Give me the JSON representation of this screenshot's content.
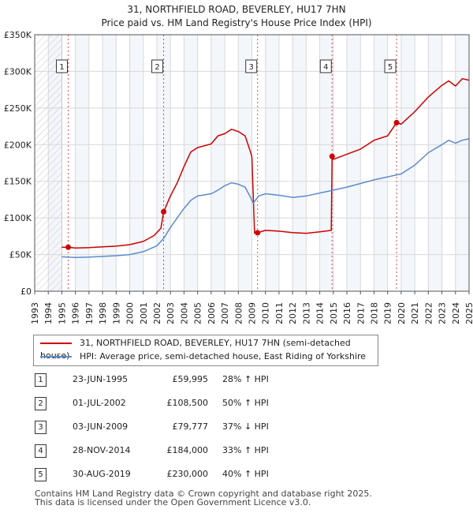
{
  "title": {
    "line1": "31, NORTHFIELD ROAD, BEVERLEY, HU17 7HN",
    "line2": "Price paid vs. HM Land Registry's House Price Index (HPI)"
  },
  "colors": {
    "property": "#cc0000",
    "hpi": "#5b8ccc",
    "grid": "#d8d8d8",
    "highlight": "#dde6f3"
  },
  "chart_data": {
    "type": "line",
    "title": "31, NORTHFIELD ROAD, BEVERLEY, HU17 7HN — Price paid vs. HM Land Registry's House Price Index (HPI)",
    "xlim": [
      1993,
      2025
    ],
    "ylim": [
      0,
      350000
    ],
    "xticks": [
      "1993",
      "1994",
      "1995",
      "1996",
      "1997",
      "1998",
      "1999",
      "2000",
      "2001",
      "2002",
      "2003",
      "2004",
      "2005",
      "2006",
      "2007",
      "2008",
      "2009",
      "2010",
      "2011",
      "2012",
      "2013",
      "2014",
      "2015",
      "2016",
      "2017",
      "2018",
      "2019",
      "2020",
      "2021",
      "2022",
      "2023",
      "2024",
      "2025"
    ],
    "yticks": [
      {
        "value": 0,
        "label": "£0"
      },
      {
        "value": 50000,
        "label": "£50K"
      },
      {
        "value": 100000,
        "label": "£100K"
      },
      {
        "value": 150000,
        "label": "£150K"
      },
      {
        "value": 200000,
        "label": "£200K"
      },
      {
        "value": 250000,
        "label": "£250K"
      },
      {
        "value": 300000,
        "label": "£300K"
      },
      {
        "value": 350000,
        "label": "£350K"
      }
    ],
    "hatch_until": 1995.0,
    "series": [
      {
        "name": "31, NORTHFIELD ROAD, BEVERLEY, HU17 7HN (semi-detached house)",
        "points": [
          [
            1995.0,
            60000
          ],
          [
            1995.47,
            59995
          ],
          [
            1996,
            59000
          ],
          [
            1997,
            59500
          ],
          [
            1998,
            60500
          ],
          [
            1999,
            61500
          ],
          [
            2000,
            63500
          ],
          [
            2001,
            68000
          ],
          [
            2001.8,
            76000
          ],
          [
            2002.3,
            86000
          ],
          [
            2002.5,
            108500
          ],
          [
            2003,
            130000
          ],
          [
            2003.5,
            148000
          ],
          [
            2004,
            170000
          ],
          [
            2004.5,
            190000
          ],
          [
            2005,
            196000
          ],
          [
            2006,
            201000
          ],
          [
            2006.5,
            212000
          ],
          [
            2007,
            215000
          ],
          [
            2007.5,
            221000
          ],
          [
            2008,
            218000
          ],
          [
            2008.5,
            212000
          ],
          [
            2008.9,
            190000
          ],
          [
            2009.0,
            183000
          ],
          [
            2009.2,
            79000
          ],
          [
            2009.42,
            79777
          ],
          [
            2010,
            83000
          ],
          [
            2011,
            82000
          ],
          [
            2012,
            80000
          ],
          [
            2013,
            79000
          ],
          [
            2014,
            81000
          ],
          [
            2014.85,
            83000
          ],
          [
            2014.91,
            184000
          ],
          [
            2015,
            180000
          ],
          [
            2016,
            187000
          ],
          [
            2017,
            194000
          ],
          [
            2018,
            206000
          ],
          [
            2019,
            212000
          ],
          [
            2019.66,
            230000
          ],
          [
            2020,
            228000
          ],
          [
            2021,
            245000
          ],
          [
            2022,
            265000
          ],
          [
            2023,
            281000
          ],
          [
            2023.5,
            287000
          ],
          [
            2024,
            280000
          ],
          [
            2024.5,
            290000
          ],
          [
            2025,
            288000
          ]
        ]
      },
      {
        "name": "HPI: Average price, semi-detached house, East Riding of Yorkshire",
        "points": [
          [
            1995.0,
            47000
          ],
          [
            1996,
            46000
          ],
          [
            1997,
            46500
          ],
          [
            1998,
            47500
          ],
          [
            1999,
            48500
          ],
          [
            2000,
            50000
          ],
          [
            2001,
            54000
          ],
          [
            2002,
            62000
          ],
          [
            2002.5,
            72000
          ],
          [
            2003,
            87000
          ],
          [
            2003.5,
            100000
          ],
          [
            2004,
            113000
          ],
          [
            2004.5,
            124000
          ],
          [
            2005,
            130000
          ],
          [
            2006,
            133000
          ],
          [
            2006.5,
            138000
          ],
          [
            2007,
            144000
          ],
          [
            2007.5,
            148000
          ],
          [
            2008,
            146000
          ],
          [
            2008.5,
            142000
          ],
          [
            2008.9,
            128000
          ],
          [
            2009.1,
            120000
          ],
          [
            2009.5,
            130000
          ],
          [
            2010,
            133000
          ],
          [
            2011,
            131000
          ],
          [
            2012,
            128000
          ],
          [
            2013,
            130000
          ],
          [
            2014,
            134000
          ],
          [
            2015,
            138000
          ],
          [
            2016,
            142000
          ],
          [
            2017,
            147000
          ],
          [
            2018,
            152000
          ],
          [
            2019,
            156000
          ],
          [
            2020,
            160000
          ],
          [
            2021,
            172000
          ],
          [
            2022,
            189000
          ],
          [
            2023,
            200000
          ],
          [
            2023.5,
            206000
          ],
          [
            2024,
            202000
          ],
          [
            2024.5,
            206000
          ],
          [
            2025,
            208000
          ]
        ]
      }
    ],
    "sales": [
      {
        "label": "1",
        "x": 1995.47,
        "y": 59995
      },
      {
        "label": "2",
        "x": 2002.5,
        "y": 108500
      },
      {
        "label": "3",
        "x": 2009.42,
        "y": 79777
      },
      {
        "label": "4",
        "x": 2014.91,
        "y": 184000
      },
      {
        "label": "5",
        "x": 2019.66,
        "y": 230000
      }
    ]
  },
  "legend": {
    "property": "31, NORTHFIELD ROAD, BEVERLEY, HU17 7HN (semi-detached house)",
    "hpi": "HPI: Average price, semi-detached house, East Riding of Yorkshire"
  },
  "sales_table": [
    {
      "num": "1",
      "date": "23-JUN-1995",
      "price": "£59,995",
      "hpi": "28% ↑ HPI"
    },
    {
      "num": "2",
      "date": "01-JUL-2002",
      "price": "£108,500",
      "hpi": "50% ↑ HPI"
    },
    {
      "num": "3",
      "date": "03-JUN-2009",
      "price": "£79,777",
      "hpi": "37% ↓ HPI"
    },
    {
      "num": "4",
      "date": "28-NOV-2014",
      "price": "£184,000",
      "hpi": "33% ↑ HPI"
    },
    {
      "num": "5",
      "date": "30-AUG-2019",
      "price": "£230,000",
      "hpi": "40% ↑ HPI"
    }
  ],
  "footer": {
    "line1": "Contains HM Land Registry data © Crown copyright and database right 2025.",
    "line2": "This data is licensed under the Open Government Licence v3.0."
  }
}
